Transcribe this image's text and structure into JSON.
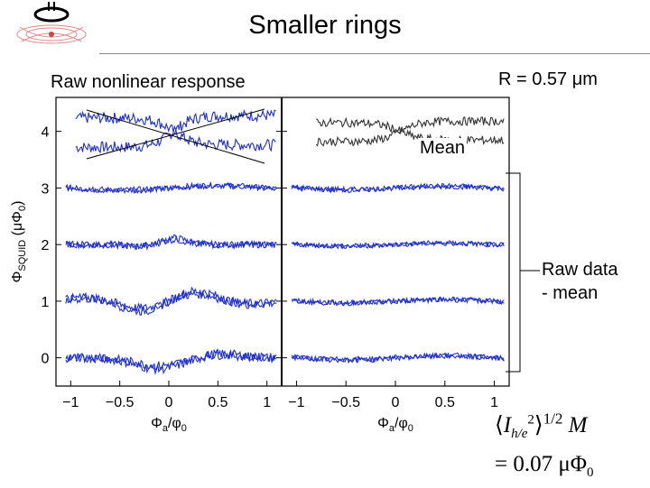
{
  "header": {
    "title": "Smaller rings",
    "left_label": "Raw nonlinear response",
    "right_label": "R = 0.57 μm"
  },
  "annotations": {
    "mean": "Mean",
    "raw_line1": "Raw data",
    "raw_line2": "- mean",
    "formula_I": "I",
    "formula_sub": "h/e",
    "formula_sup": "2",
    "formula_exp": "1/2",
    "formula_M": "M",
    "formula_result": "= 0.07 μΦ",
    "formula_result_sub": "0"
  },
  "colors": {
    "trace_blue": "#1f2fd0",
    "trace_dark": "#333333",
    "axis": "#000000"
  },
  "chart_data": {
    "type": "line",
    "panels": [
      {
        "name": "left",
        "xlabel_main": "Φ",
        "xlabel_sub": "a",
        "xlabel_slash": "/φ",
        "xlabel_sub2": "0",
        "xlim": [
          -1.15,
          1.15
        ],
        "xticks": [
          -1,
          -0.5,
          0,
          0.5,
          1
        ],
        "xtick_labels": [
          "−1",
          "−0.5",
          "0",
          "0.5",
          "1"
        ],
        "rows": [
          {
            "offset": 4,
            "amplitude": 0.28,
            "shape": "step",
            "color": "blue"
          },
          {
            "offset": 3,
            "amplitude": 0.08,
            "shape": "noise",
            "color": "blue"
          },
          {
            "offset": 2,
            "amplitude": 0.12,
            "shape": "bump",
            "color": "blue"
          },
          {
            "offset": 1,
            "amplitude": 0.2,
            "shape": "wave",
            "color": "blue"
          },
          {
            "offset": 0,
            "amplitude": 0.2,
            "shape": "dip",
            "color": "blue"
          }
        ]
      },
      {
        "name": "right",
        "xlabel_main": "Φ",
        "xlabel_sub": "a",
        "xlabel_slash": "/φ",
        "xlabel_sub2": "0",
        "xlim": [
          -1.15,
          1.15
        ],
        "xticks": [
          -1,
          -0.5,
          0,
          0.5,
          1
        ],
        "xtick_labels": [
          "−1",
          "−0.5",
          "0",
          "0.5",
          "1"
        ],
        "rows": [
          {
            "offset": 4,
            "amplitude": 0.18,
            "shape": "step",
            "color": "dark"
          },
          {
            "offset": 3,
            "amplitude": 0.06,
            "shape": "noise",
            "color": "blue"
          },
          {
            "offset": 2,
            "amplitude": 0.05,
            "shape": "noise",
            "color": "blue"
          },
          {
            "offset": 1,
            "amplitude": 0.06,
            "shape": "noise",
            "color": "blue"
          },
          {
            "offset": 0,
            "amplitude": 0.07,
            "shape": "noise",
            "color": "blue"
          }
        ]
      }
    ],
    "ylabel_main": "Φ",
    "ylabel_sub": "SQUID",
    "ylabel_unit": "(μΦ",
    "ylabel_unit_sub": "0",
    "ylabel_close": ")",
    "ylim": [
      -0.5,
      4.6
    ],
    "yticks": [
      0,
      1,
      2,
      3,
      4
    ],
    "ytick_labels": [
      "0",
      "1",
      "2",
      "3",
      "4"
    ]
  }
}
